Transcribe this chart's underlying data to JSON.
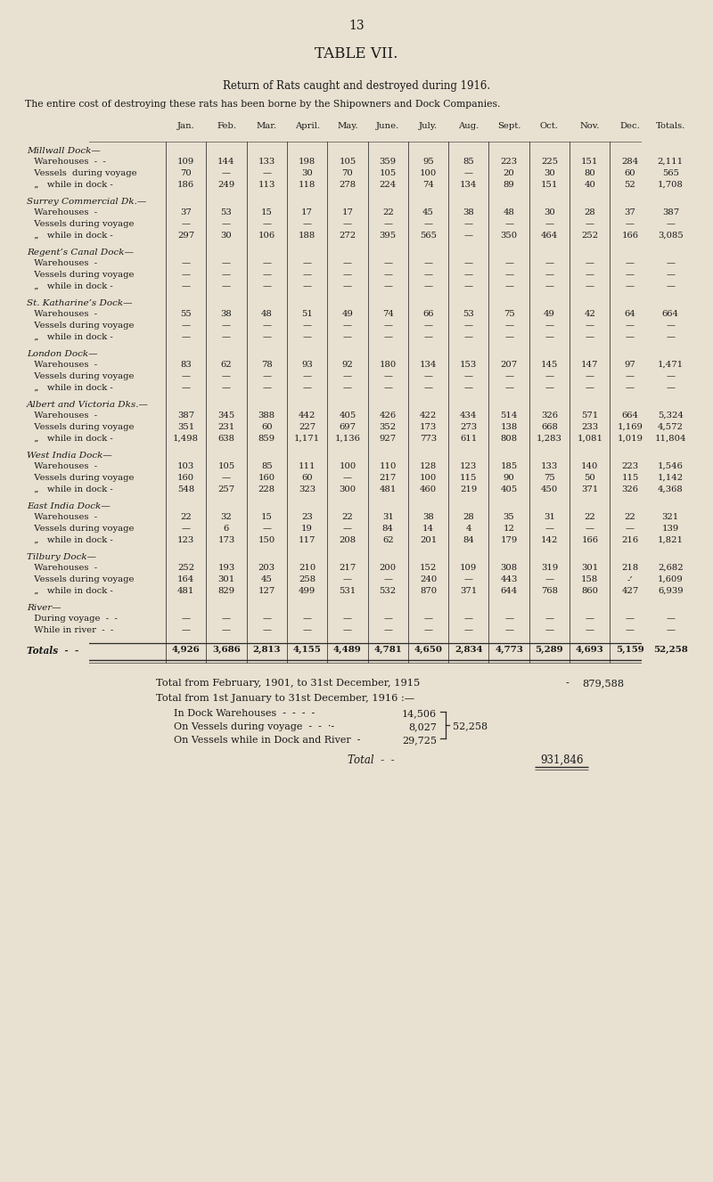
{
  "page_number": "13",
  "title": "TABLE VII.",
  "subtitle": "Return of Rats caught and destroyed during 1916.",
  "note": "The entire cost of destroying these rats has been borne by the Shipowners and Dock Companies.",
  "col_headers": [
    "Jan.",
    "Feb.",
    "Mar.",
    "April.",
    "May.",
    "June.",
    "July.",
    "Aug.",
    "Sept.",
    "Oct.",
    "Nov.",
    "Dec.",
    "Totals."
  ],
  "sections": [
    {
      "group": "Millwall Dock—",
      "rows": [
        {
          "label": "  Warehouses  -  -",
          "data": [
            "109",
            "144",
            "133",
            "198",
            "105",
            "359",
            "95",
            "85",
            "223",
            "225",
            "151",
            "284",
            "2,111"
          ]
        },
        {
          "label": "  Vessels  during voyage",
          "data": [
            "70",
            "—",
            "—",
            "30",
            "70",
            "105",
            "100",
            "—",
            "20",
            "30",
            "80",
            "60",
            "565"
          ]
        },
        {
          "label": "  „   while in dock -",
          "data": [
            "186",
            "249",
            "113",
            "118",
            "278",
            "224",
            "74",
            "134",
            "89",
            "151",
            "40",
            "52",
            "1,708"
          ]
        }
      ]
    },
    {
      "group": "Surrey Commercial Dk.—",
      "rows": [
        {
          "label": "  Warehouses  -",
          "data": [
            "37",
            "53",
            "15",
            "17",
            "17",
            "22",
            "45",
            "38",
            "48",
            "30",
            "28",
            "37",
            "387"
          ]
        },
        {
          "label": "  Vessels during voyage",
          "data": [
            "—",
            "—",
            "—",
            "—",
            "—",
            "—",
            "—",
            "—",
            "—",
            "—",
            "—",
            "—",
            "—"
          ]
        },
        {
          "label": "  „   while in dock -",
          "data": [
            "297",
            "30",
            "106",
            "188",
            "272",
            "395",
            "565",
            "—",
            "350",
            "464",
            "252",
            "166",
            "3,085"
          ]
        }
      ]
    },
    {
      "group": "Regent’s Canal Dock—",
      "rows": [
        {
          "label": "  Warehouses  -",
          "data": [
            "—",
            "—",
            "—",
            "—",
            "—",
            "—",
            "—",
            "—",
            "—",
            "—",
            "—",
            "—",
            "—"
          ]
        },
        {
          "label": "  Vessels during voyage",
          "data": [
            "—",
            "—",
            "—",
            "—",
            "—",
            "—",
            "—",
            "—",
            "—",
            "—",
            "—",
            "—",
            "—"
          ]
        },
        {
          "label": "  „   while in dock -",
          "data": [
            "—",
            "—",
            "—",
            "—",
            "—",
            "—",
            "—",
            "—",
            "—",
            "—",
            "—",
            "—",
            "—"
          ]
        }
      ]
    },
    {
      "group": "St. Katharine’s Dock—",
      "rows": [
        {
          "label": "  Warehouses  -",
          "data": [
            "55",
            "38",
            "48",
            "51",
            "49",
            "74",
            "66",
            "53",
            "75",
            "49",
            "42",
            "64",
            "664"
          ]
        },
        {
          "label": "  Vessels during voyage",
          "data": [
            "—",
            "—",
            "—",
            "—",
            "—",
            "—",
            "—",
            "—",
            "—",
            "—",
            "—",
            "—",
            "—"
          ]
        },
        {
          "label": "  „   while in dock -",
          "data": [
            "—",
            "—",
            "—",
            "—",
            "—",
            "—",
            "—",
            "—",
            "—",
            "—",
            "—",
            "—",
            "—"
          ]
        }
      ]
    },
    {
      "group": "London Dock—",
      "rows": [
        {
          "label": "  Warehouses  -",
          "data": [
            "83",
            "62",
            "78",
            "93",
            "92",
            "180",
            "134",
            "153",
            "207",
            "145",
            "147",
            "97",
            "1,471"
          ]
        },
        {
          "label": "  Vessels during voyage",
          "data": [
            "—",
            "—",
            "—",
            "—",
            "—",
            "—",
            "—",
            "—",
            "—",
            "—",
            "—",
            "—",
            "—"
          ]
        },
        {
          "label": "  „   while in dock -",
          "data": [
            "—",
            "—",
            "—",
            "—",
            "—",
            "—",
            "—",
            "—",
            "—",
            "—",
            "—",
            "—",
            "—"
          ]
        }
      ]
    },
    {
      "group": "Albert and Victoria Dks.—",
      "rows": [
        {
          "label": "  Warehouses  -",
          "data": [
            "387",
            "345",
            "388",
            "442",
            "405",
            "426",
            "422",
            "434",
            "514",
            "326",
            "571",
            "664",
            "5,324"
          ]
        },
        {
          "label": "  Vessels during voyage",
          "data": [
            "351",
            "231",
            "60",
            "227",
            "697",
            "352",
            "173",
            "273",
            "138",
            "668",
            "233",
            "1,169",
            "4,572"
          ]
        },
        {
          "label": "  „   while in dock -",
          "data": [
            "1,498",
            "638",
            "859",
            "1,171",
            "1,136",
            "927",
            "773",
            "611",
            "808",
            "1,283",
            "1,081",
            "1,019",
            "11,804"
          ]
        }
      ]
    },
    {
      "group": "West India Dock—",
      "rows": [
        {
          "label": "  Warehouses  -",
          "data": [
            "103",
            "105",
            "85",
            "111",
            "100",
            "110",
            "128",
            "123",
            "185",
            "133",
            "140",
            "223",
            "1,546"
          ]
        },
        {
          "label": "  Vessels during voyage",
          "data": [
            "160",
            "—",
            "160",
            "60",
            "—",
            "217",
            "100",
            "115",
            "90",
            "75",
            "50",
            "115",
            "1,142"
          ]
        },
        {
          "label": "  „   while in dock -",
          "data": [
            "548",
            "257",
            "228",
            "323",
            "300",
            "481",
            "460",
            "219",
            "405",
            "450",
            "371",
            "326",
            "4,368"
          ]
        }
      ]
    },
    {
      "group": "East India Dock—",
      "rows": [
        {
          "label": "  Warehouses  -",
          "data": [
            "22",
            "32",
            "15",
            "23",
            "22",
            "31",
            "38",
            "28",
            "35",
            "31",
            "22",
            "22",
            "321"
          ]
        },
        {
          "label": "  Vessels during voyage",
          "data": [
            "—",
            "6",
            "—",
            "19",
            "—",
            "84",
            "14",
            "4",
            "12",
            "—",
            "—",
            "—",
            "139"
          ]
        },
        {
          "label": "  „   while in dock -",
          "data": [
            "123",
            "173",
            "150",
            "117",
            "208",
            "62",
            "201",
            "84",
            "179",
            "142",
            "166",
            "216",
            "1,821"
          ]
        }
      ]
    },
    {
      "group": "Tilbury Dock—",
      "rows": [
        {
          "label": "  Warehouses  -",
          "data": [
            "252",
            "193",
            "203",
            "210",
            "217",
            "200",
            "152",
            "109",
            "308",
            "319",
            "301",
            "218",
            "2,682"
          ]
        },
        {
          "label": "  Vessels during voyage",
          "data": [
            "164",
            "301",
            "45",
            "258",
            "—",
            "—",
            "240",
            "—",
            "443",
            "—",
            "158",
            "-’",
            "1,609"
          ]
        },
        {
          "label": "  „   while in dock -",
          "data": [
            "481",
            "829",
            "127",
            "499",
            "531",
            "532",
            "870",
            "371",
            "644",
            "768",
            "860",
            "427",
            "6,939"
          ]
        }
      ]
    },
    {
      "group": "River—",
      "rows": [
        {
          "label": "  During voyage  -  -",
          "data": [
            "—",
            "—",
            "—",
            "—",
            "—",
            "—",
            "—",
            "—",
            "—",
            "—",
            "—",
            "—",
            "—"
          ]
        },
        {
          "label": "  While in river  -  -",
          "data": [
            "—",
            "—",
            "—",
            "—",
            "—",
            "—",
            "—",
            "—",
            "—",
            "—",
            "—",
            "—",
            "—"
          ]
        }
      ]
    }
  ],
  "totals_row": {
    "label": "Totals  -  -",
    "data": [
      "4,926",
      "3,686",
      "2,813",
      "4,155",
      "4,489",
      "4,781",
      "4,650",
      "2,834",
      "4,773",
      "5,289",
      "4,693",
      "5,159",
      "52,258"
    ]
  },
  "footer_line1": "Total from February, 1901, to 31st December, 1915",
  "footer_line1_value": "879,588",
  "footer_line2": "Total from 1st January to 31st December, 1916 :—",
  "summary_items": [
    {
      "label": "In Dock Warehouses  -  -  -  -",
      "value": "14,506"
    },
    {
      "label": "On Vessels during voyage  -  -  ·-",
      "value": "8,027"
    },
    {
      "label": "On Vessels while in Dock and River  -",
      "value": "29,725"
    }
  ],
  "summary_brace_value": "52,258",
  "grand_total_label": "Total",
  "grand_total_dashes": "  -  -",
  "grand_total_value": "931,846",
  "bg_color": "#e8e0d0",
  "text_color": "#1a1a1a",
  "line_color": "#2a2a2a"
}
